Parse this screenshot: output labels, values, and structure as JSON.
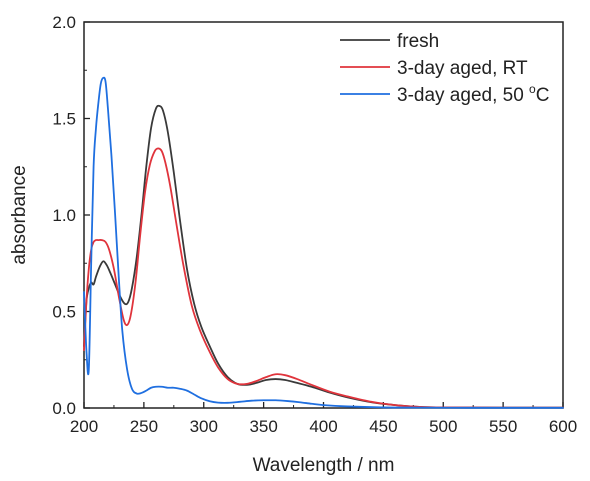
{
  "chart_data": {
    "type": "line",
    "xlabel": "Wavelength / nm",
    "ylabel": "absorbance",
    "xlim": [
      200,
      600
    ],
    "ylim": [
      0,
      2.0
    ],
    "xticks": [
      "200",
      "250",
      "300",
      "350",
      "400",
      "450",
      "500",
      "550",
      "600"
    ],
    "yticks": [
      "0.0",
      "0.5",
      "1.0",
      "1.5",
      "2.0"
    ],
    "grid": false,
    "legend_position": "top-right",
    "series": [
      {
        "name": "fresh",
        "color": "#3a3a3a",
        "x": [
          200,
          202,
          204,
          206,
          208,
          210,
          213,
          216,
          219,
          222,
          226,
          230,
          234,
          237,
          240,
          244,
          248,
          252,
          256,
          260,
          263,
          266,
          270,
          275,
          280,
          286,
          292,
          298,
          305,
          312,
          320,
          328,
          336,
          344,
          352,
          360,
          368,
          378,
          390,
          405,
          420,
          440,
          460,
          480,
          500,
          550,
          600
        ],
        "y": [
          0.32,
          0.55,
          0.62,
          0.65,
          0.64,
          0.68,
          0.73,
          0.76,
          0.74,
          0.7,
          0.64,
          0.58,
          0.54,
          0.55,
          0.62,
          0.78,
          1.0,
          1.25,
          1.45,
          1.55,
          1.565,
          1.54,
          1.43,
          1.22,
          0.98,
          0.72,
          0.54,
          0.42,
          0.32,
          0.23,
          0.16,
          0.125,
          0.12,
          0.13,
          0.145,
          0.15,
          0.145,
          0.13,
          0.11,
          0.08,
          0.055,
          0.03,
          0.015,
          0.006,
          0.003,
          0.002,
          0.002
        ]
      },
      {
        "name": "3-day aged, RT",
        "color": "#e0343c",
        "x": [
          200,
          202,
          204,
          206,
          208,
          210,
          212,
          215,
          218,
          221,
          225,
          229,
          233,
          236,
          239,
          243,
          247,
          251,
          255,
          259,
          262,
          265,
          268,
          272,
          277,
          283,
          290,
          297,
          305,
          312,
          320,
          328,
          336,
          344,
          352,
          360,
          368,
          378,
          390,
          405,
          420,
          440,
          460,
          480,
          500,
          550,
          600
        ],
        "y": [
          0.3,
          0.55,
          0.72,
          0.82,
          0.86,
          0.87,
          0.87,
          0.87,
          0.86,
          0.82,
          0.72,
          0.58,
          0.46,
          0.43,
          0.48,
          0.65,
          0.9,
          1.12,
          1.26,
          1.33,
          1.345,
          1.33,
          1.27,
          1.15,
          0.96,
          0.74,
          0.53,
          0.4,
          0.29,
          0.21,
          0.15,
          0.125,
          0.125,
          0.14,
          0.16,
          0.175,
          0.17,
          0.15,
          0.12,
          0.085,
          0.06,
          0.032,
          0.015,
          0.006,
          0.003,
          0.002,
          0.002
        ]
      },
      {
        "name": "3-day aged, 50 °C",
        "color": "#1f6fe0",
        "x": [
          200,
          202,
          204,
          206,
          208,
          210,
          212,
          214,
          216,
          218,
          220,
          223,
          226,
          229,
          232,
          236,
          240,
          244,
          248,
          252,
          256,
          260,
          265,
          270,
          275,
          280,
          286,
          292,
          298,
          305,
          312,
          320,
          330,
          340,
          350,
          360,
          370,
          380,
          390,
          400,
          420,
          450,
          480,
          520,
          560,
          600
        ],
        "y": [
          0.6,
          0.3,
          0.2,
          0.75,
          1.25,
          1.45,
          1.58,
          1.68,
          1.71,
          1.69,
          1.55,
          1.3,
          1.0,
          0.68,
          0.4,
          0.2,
          0.1,
          0.075,
          0.078,
          0.09,
          0.105,
          0.11,
          0.11,
          0.105,
          0.105,
          0.1,
          0.09,
          0.07,
          0.05,
          0.035,
          0.028,
          0.027,
          0.032,
          0.038,
          0.04,
          0.04,
          0.036,
          0.03,
          0.022,
          0.015,
          0.008,
          0.003,
          0.002,
          0.001,
          0.001,
          0.001
        ]
      }
    ]
  }
}
